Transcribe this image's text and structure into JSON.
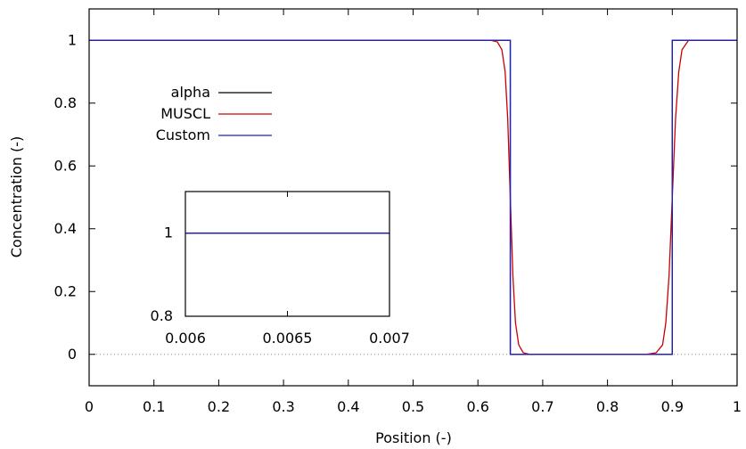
{
  "chart_data": [
    {
      "type": "line",
      "xlabel": "Position (-)",
      "ylabel": "Concentration (-)",
      "xlim": [
        0,
        1
      ],
      "ylim": [
        -0.1,
        1.1
      ],
      "x_ticks": [
        "0",
        "0.1",
        "0.2",
        "0.3",
        "0.4",
        "0.5",
        "0.6",
        "0.7",
        "0.8",
        "0.9",
        "1"
      ],
      "y_ticks": [
        "0",
        "0.2",
        "0.4",
        "0.6",
        "0.8",
        "1"
      ],
      "zero_line": "dotted",
      "legend": "upper-left",
      "series": [
        {
          "name": "alpha",
          "color": "#000000",
          "x": [
            0,
            0.65,
            0.65,
            0.9,
            0.9,
            1
          ],
          "y": [
            1,
            1,
            0,
            0,
            1,
            1
          ]
        },
        {
          "name": "MUSCL",
          "color": "#cc0000",
          "x": [
            0,
            0.62,
            0.63,
            0.637,
            0.642,
            0.646,
            0.65,
            0.654,
            0.658,
            0.663,
            0.67,
            0.68,
            0.86,
            0.875,
            0.885,
            0.89,
            0.895,
            0.9,
            0.905,
            0.91,
            0.915,
            0.925,
            1
          ],
          "y": [
            1,
            1,
            0.995,
            0.97,
            0.9,
            0.75,
            0.5,
            0.25,
            0.1,
            0.03,
            0.005,
            0,
            0,
            0.005,
            0.03,
            0.1,
            0.25,
            0.5,
            0.75,
            0.9,
            0.97,
            1,
            1
          ]
        },
        {
          "name": "Custom",
          "color": "#2020c0",
          "x": [
            0,
            0.65,
            0.65,
            0.9,
            0.9,
            1
          ],
          "y": [
            1,
            1,
            0,
            0,
            1,
            1
          ]
        }
      ]
    },
    {
      "type": "line",
      "xlim": [
        0.006,
        0.007
      ],
      "ylim": [
        0.8,
        1.1
      ],
      "x_ticks": [
        "0.006",
        "0.0065",
        "0.007"
      ],
      "y_ticks": [
        "0.8",
        "1"
      ],
      "series": [
        {
          "name": "alpha",
          "color": "#000000",
          "x": [
            0.006,
            0.007
          ],
          "y": [
            1,
            1
          ]
        },
        {
          "name": "MUSCL",
          "color": "#cc0000",
          "x": [
            0.006,
            0.007
          ],
          "y": [
            1,
            1
          ]
        },
        {
          "name": "Custom",
          "color": "#2020c0",
          "x": [
            0.006,
            0.007
          ],
          "y": [
            1,
            1
          ]
        }
      ]
    }
  ]
}
